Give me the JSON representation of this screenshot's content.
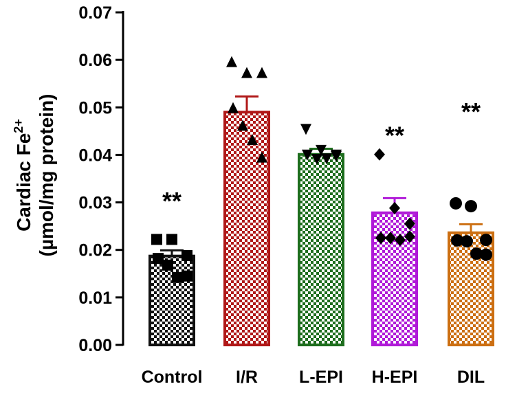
{
  "chart_data": {
    "type": "bar",
    "title": "",
    "ylabel_line1": "Cardiac Fe",
    "ylabel_sup": "2+",
    "ylabel_line2": "(µmol/mg protein)",
    "xlabel": "",
    "ylim": [
      0,
      0.07
    ],
    "yticks": [
      "0.00",
      "0.01",
      "0.02",
      "0.03",
      "0.04",
      "0.05",
      "0.06",
      "0.07"
    ],
    "ytick_values": [
      0,
      0.01,
      0.02,
      0.03,
      0.04,
      0.05,
      0.06,
      0.07
    ],
    "categories": [
      "Control",
      "I/R",
      "L-EPI",
      "H-EPI",
      "DIL"
    ],
    "values": [
      0.0187,
      0.049,
      0.0401,
      0.0278,
      0.0236
    ],
    "errors": [
      0.0012,
      0.0033,
      0.0012,
      0.0031,
      0.0018
    ],
    "colors": [
      "#111111",
      "#b01818",
      "#1e6e1e",
      "#b01ad8",
      "#cc6f12"
    ],
    "markers": [
      "square",
      "triangle-up",
      "triangle-down",
      "diamond",
      "circle"
    ],
    "significance": [
      "**",
      "",
      "",
      "**",
      "**"
    ],
    "points": [
      [
        0.0222,
        0.0222,
        0.0188,
        0.0182,
        0.0168,
        0.0142,
        0.0145
      ],
      [
        0.0595,
        0.0572,
        0.0572,
        0.0498,
        0.0461,
        0.0431,
        0.0394
      ],
      [
        0.0455,
        0.0411,
        0.0401,
        0.0401,
        0.0392,
        0.0393,
        0.0398
      ],
      [
        0.0401,
        0.0288,
        0.0255,
        0.0225,
        0.0225,
        0.0221,
        0.0228
      ],
      [
        0.0298,
        0.0292,
        0.0221,
        0.022,
        0.0218,
        0.0192,
        0.019
      ]
    ]
  }
}
